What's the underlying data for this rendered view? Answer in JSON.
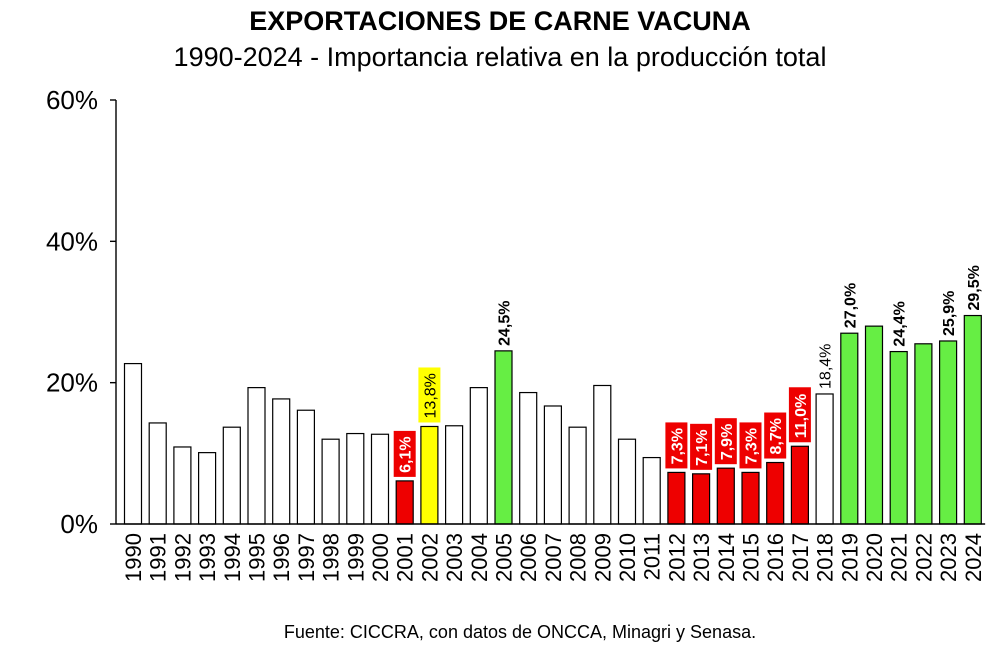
{
  "chart_data": {
    "type": "bar",
    "title": "EXPORTACIONES DE CARNE VACUNA",
    "subtitle": "1990-2024 - Importancia relativa en la producción total",
    "source": "Fuente: CICCRA, con datos de ONCCA, Minagri y Senasa.",
    "ylim": [
      0,
      60
    ],
    "yticks": [
      0,
      20,
      40,
      60
    ],
    "ytick_labels": [
      "0%",
      "20%",
      "40%",
      "60%"
    ],
    "grid": false,
    "categories": [
      "1990",
      "1991",
      "1992",
      "1993",
      "1994",
      "1995",
      "1996",
      "1997",
      "1998",
      "1999",
      "2000",
      "2001",
      "2002",
      "2003",
      "2004",
      "2005",
      "2006",
      "2007",
      "2008",
      "2009",
      "2010",
      "2011",
      "2012",
      "2013",
      "2014",
      "2015",
      "2016",
      "2017",
      "2018",
      "2019",
      "2020",
      "2021",
      "2022",
      "2023",
      "2024"
    ],
    "values": [
      22.7,
      14.3,
      10.9,
      10.1,
      13.7,
      19.3,
      17.7,
      16.1,
      12.0,
      12.8,
      12.7,
      6.1,
      13.8,
      13.9,
      19.3,
      24.5,
      18.6,
      16.7,
      13.7,
      19.6,
      12.0,
      9.4,
      7.3,
      7.1,
      7.9,
      7.3,
      8.7,
      11.0,
      18.4,
      27.0,
      28.0,
      24.4,
      25.5,
      25.9,
      29.5
    ],
    "bar_colors": [
      "#ffffff",
      "#ffffff",
      "#ffffff",
      "#ffffff",
      "#ffffff",
      "#ffffff",
      "#ffffff",
      "#ffffff",
      "#ffffff",
      "#ffffff",
      "#ffffff",
      "#ee0000",
      "#ffff00",
      "#ffffff",
      "#ffffff",
      "#66ee44",
      "#ffffff",
      "#ffffff",
      "#ffffff",
      "#ffffff",
      "#ffffff",
      "#ffffff",
      "#ee0000",
      "#ee0000",
      "#ee0000",
      "#ee0000",
      "#ee0000",
      "#ee0000",
      "#ffffff",
      "#66ee44",
      "#66ee44",
      "#66ee44",
      "#66ee44",
      "#66ee44",
      "#66ee44"
    ],
    "data_labels": [
      {
        "year": "2001",
        "text": "6,1%",
        "style": "red-box"
      },
      {
        "year": "2002",
        "text": "13,8%",
        "style": "yellow-box"
      },
      {
        "year": "2005",
        "text": "24,5%",
        "style": "bold"
      },
      {
        "year": "2012",
        "text": "7,3%",
        "style": "red-box"
      },
      {
        "year": "2013",
        "text": "7,1%",
        "style": "red-box"
      },
      {
        "year": "2014",
        "text": "7,9%",
        "style": "red-box"
      },
      {
        "year": "2015",
        "text": "7,3%",
        "style": "red-box"
      },
      {
        "year": "2016",
        "text": "8,7%",
        "style": "red-box"
      },
      {
        "year": "2017",
        "text": "11,0%",
        "style": "red-box"
      },
      {
        "year": "2018",
        "text": "18,4%",
        "style": "plain"
      },
      {
        "year": "2019",
        "text": "27,0%",
        "style": "bold"
      },
      {
        "year": "2021",
        "text": "24,4%",
        "style": "bold"
      },
      {
        "year": "2023",
        "text": "25,9%",
        "style": "bold"
      },
      {
        "year": "2024",
        "text": "29,5%",
        "style": "bold"
      }
    ],
    "colors": {
      "red": "#ee0000",
      "yellow": "#ffff00",
      "green": "#66ee44",
      "white": "#ffffff",
      "outline": "#000000"
    }
  }
}
